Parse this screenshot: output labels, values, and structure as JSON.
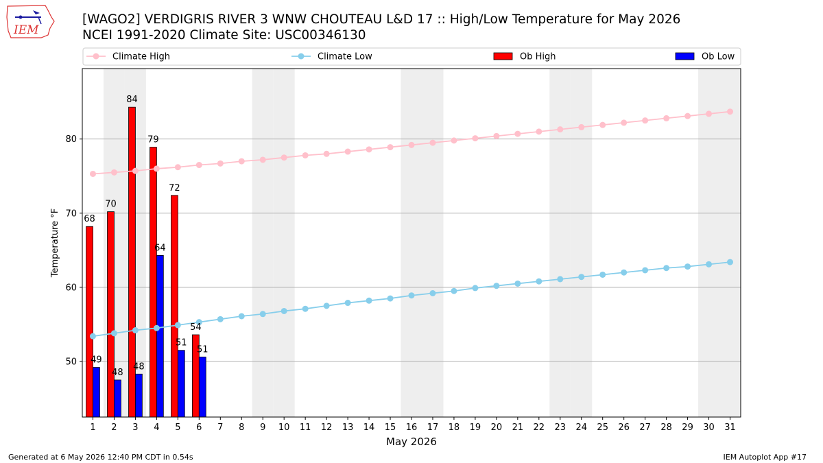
{
  "header": {
    "title_line1": "[WAGO2] VERDIGRIS RIVER 3 WNW CHOUTEAU L&D 17 :: High/Low Temperature for May 2026",
    "title_line2": "NCEI 1991-2020 Climate Site: USC00346130"
  },
  "logo": {
    "text": "IEM",
    "icon": "iem-iowa-logo"
  },
  "footer": {
    "left": "Generated at 6 May 2026 12:40 PM CDT in 0.54s",
    "right": "IEM Autoplot App #17"
  },
  "colors": {
    "climate_high": "#ffc0cb",
    "climate_low": "#87ceeb",
    "ob_high": "#ff0000",
    "ob_low": "#0000ff",
    "weekend_band": "#eeeeee",
    "grid": "#b0b0b0"
  },
  "chart_data": {
    "type": "bar",
    "xlabel": "May 2026",
    "ylabel": "Temperature °F",
    "ylim": [
      42.5,
      89.5
    ],
    "xlim": [
      0.5,
      31.5
    ],
    "yticks": [
      50,
      60,
      70,
      80
    ],
    "days": [
      1,
      2,
      3,
      4,
      5,
      6,
      7,
      8,
      9,
      10,
      11,
      12,
      13,
      14,
      15,
      16,
      17,
      18,
      19,
      20,
      21,
      22,
      23,
      24,
      25,
      26,
      27,
      28,
      29,
      30,
      31
    ],
    "weekend_days": [
      2,
      3,
      9,
      10,
      16,
      17,
      23,
      24,
      30,
      31
    ],
    "grid": "horizontal",
    "legend_position": "top",
    "series": [
      {
        "name": "Climate High",
        "kind": "line",
        "values": [
          75.3,
          75.5,
          75.7,
          76.0,
          76.2,
          76.5,
          76.7,
          77.0,
          77.2,
          77.5,
          77.8,
          78.0,
          78.3,
          78.6,
          78.9,
          79.2,
          79.5,
          79.8,
          80.1,
          80.4,
          80.7,
          81.0,
          81.3,
          81.6,
          81.9,
          82.2,
          82.5,
          82.8,
          83.1,
          83.4,
          83.7
        ]
      },
      {
        "name": "Climate Low",
        "kind": "line",
        "values": [
          53.4,
          53.8,
          54.2,
          54.5,
          54.9,
          55.3,
          55.7,
          56.1,
          56.4,
          56.8,
          57.1,
          57.5,
          57.9,
          58.2,
          58.5,
          58.9,
          59.2,
          59.5,
          59.9,
          60.2,
          60.5,
          60.8,
          61.1,
          61.4,
          61.7,
          62.0,
          62.3,
          62.6,
          62.8,
          63.1,
          63.4
        ]
      },
      {
        "name": "Ob High",
        "kind": "bar",
        "values": [
          68.2,
          70.2,
          84.3,
          78.9,
          72.4,
          53.6
        ],
        "labels": [
          "68",
          "70",
          "84",
          "79",
          "72",
          "54"
        ]
      },
      {
        "name": "Ob Low",
        "kind": "bar",
        "values": [
          49.2,
          47.5,
          48.3,
          64.3,
          51.5,
          50.6
        ],
        "labels": [
          "49",
          "48",
          "48",
          "64",
          "51",
          "51"
        ]
      }
    ]
  }
}
